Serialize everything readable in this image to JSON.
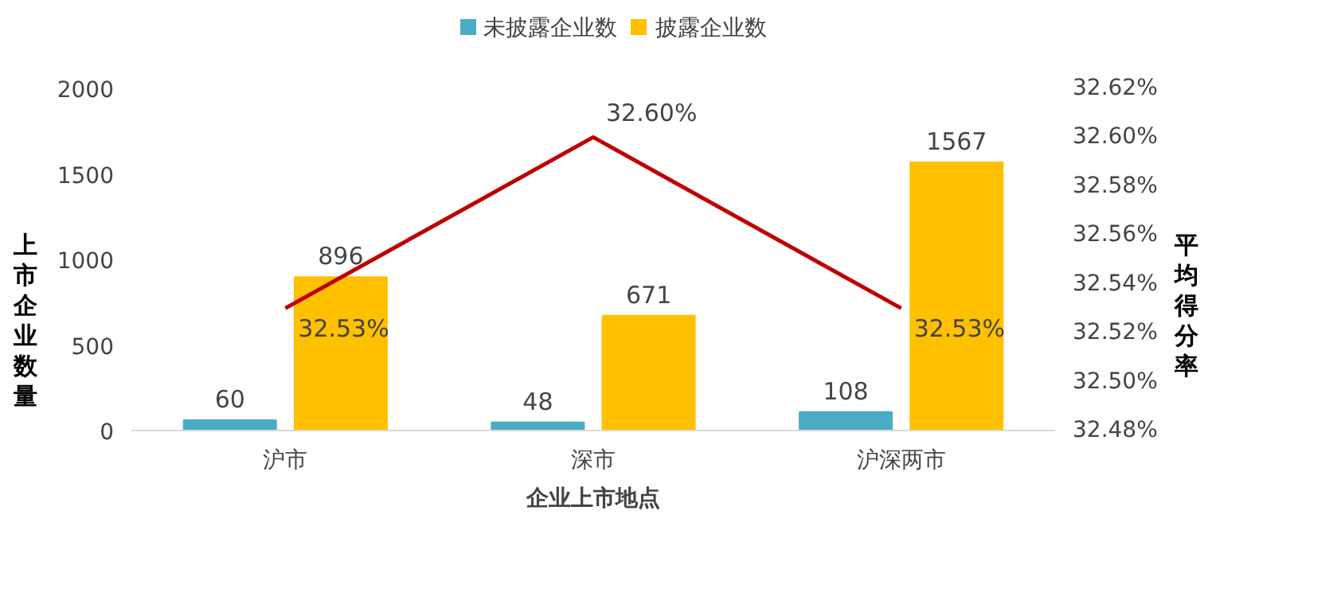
{
  "chart_data": {
    "type": "bar",
    "xlabel": "企业上市地点",
    "ylabel": "上市企业数量",
    "y2label": "平均得分率",
    "categories": [
      "沪市",
      "深市",
      "沪深两市"
    ],
    "series": [
      {
        "name": "未披露企业数",
        "color": "#4bacc6",
        "values": [
          60,
          48,
          108
        ]
      },
      {
        "name": "披露企业数",
        "color": "#ffc000",
        "values": [
          896,
          671,
          1567
        ]
      },
      {
        "type": "line",
        "axis": "y2",
        "color": "#c00000",
        "values": [
          32.53,
          32.6,
          32.53
        ],
        "value_labels": [
          "32.53%",
          "32.60%",
          "32.53%"
        ]
      }
    ],
    "ylim": [
      0,
      2000
    ],
    "yticks": [
      0,
      500,
      1000,
      1500,
      2000
    ],
    "y2lim": [
      32.48,
      32.62
    ],
    "y2ticks": [
      {
        "value": 32.48,
        "label": "32.48%"
      },
      {
        "value": 32.5,
        "label": "32.50%"
      },
      {
        "value": 32.52,
        "label": "32.52%"
      },
      {
        "value": 32.54,
        "label": "32.54%"
      },
      {
        "value": 32.56,
        "label": "32.56%"
      },
      {
        "value": 32.58,
        "label": "32.58%"
      },
      {
        "value": 32.6,
        "label": "32.60%"
      },
      {
        "value": 32.62,
        "label": "32.62%"
      }
    ],
    "data_labels": true,
    "legend": "top",
    "grid": false
  }
}
